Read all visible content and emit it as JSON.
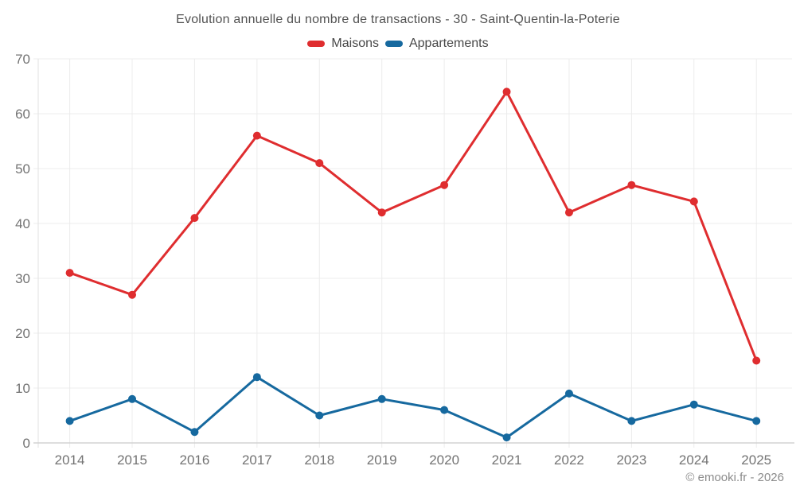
{
  "title": "Evolution annuelle du nombre de transactions - 30 - Saint-Quentin-la-Poterie",
  "legend": [
    {
      "label": "Maisons",
      "color": "#df2d2f"
    },
    {
      "label": "Appartements",
      "color": "#16699f"
    }
  ],
  "chart_data": {
    "type": "line",
    "title": "Evolution annuelle du nombre de transactions - 30 - Saint-Quentin-la-Poterie",
    "categories": [
      "2014",
      "2015",
      "2016",
      "2017",
      "2018",
      "2019",
      "2020",
      "2021",
      "2022",
      "2023",
      "2024",
      "2025"
    ],
    "series": [
      {
        "name": "Maisons",
        "color": "#df2d2f",
        "values": [
          31,
          27,
          41,
          56,
          51,
          42,
          47,
          64,
          42,
          47,
          44,
          15
        ]
      },
      {
        "name": "Appartements",
        "color": "#16699f",
        "values": [
          4,
          8,
          2,
          12,
          5,
          8,
          6,
          1,
          9,
          4,
          7,
          4
        ]
      }
    ],
    "xlabel": "",
    "ylabel": "",
    "ylim": [
      0,
      70
    ],
    "yticks": [
      0,
      10,
      20,
      30,
      40,
      50,
      60,
      70
    ],
    "grid": true,
    "legend_position": "top",
    "marker": "circle"
  },
  "colors": {
    "grid": "#ececec",
    "axis": "#cbcbcb",
    "tick_label": "#737373",
    "title_text": "#525252",
    "copyright_text": "#8b8b8b"
  },
  "footer": {
    "copyright": "© emooki.fr - 2026"
  }
}
